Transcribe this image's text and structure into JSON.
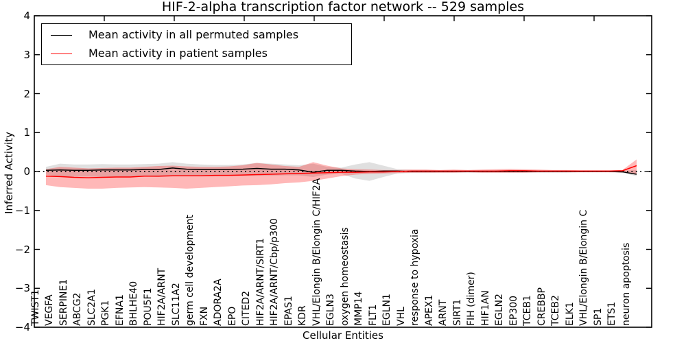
{
  "figure": {
    "title": "HIF-2-alpha transcription factor network -- 529 samples",
    "xlabel": "Cellular Entities",
    "ylabel": "Inferred Activity"
  },
  "legend": {
    "items": [
      {
        "label": "Mean activity in all permuted samples",
        "color": "#000000"
      },
      {
        "label": "Mean activity in patient samples",
        "color": "#ff0000"
      }
    ]
  },
  "chart_data": {
    "type": "line",
    "title": "HIF-2-alpha transcription factor network -- 529 samples",
    "xlabel": "Cellular Entities",
    "ylabel": "Inferred Activity",
    "ylim": [
      -4,
      4
    ],
    "yticks": [
      4,
      3,
      2,
      1,
      0,
      -1,
      -2,
      -3,
      -4
    ],
    "zero_line_style": "dotted",
    "grid": false,
    "legend_position": "upper left",
    "categories": [
      "TWIST1",
      "VEGFA",
      "SERPINE1",
      "ABCG2",
      "SLC2A1",
      "PGK1",
      "EFNA1",
      "BHLHE40",
      "POU5F1",
      "HIF2A/ARNT",
      "SLC11A2",
      "germ cell development",
      "FXN",
      "ADORA2A",
      "EPO",
      "CITED2",
      "HIF2A/ARNT/SIRT1",
      "HIF2A/ARNT/Cbp/p300",
      "EPAS1",
      "KDR",
      "VHL/Elongin B/Elongin C/HIF2A",
      "EGLN3",
      "oxygen homeostasis",
      "MMP14",
      "FLT1",
      "EGLN1",
      "VHL",
      "response to hypoxia",
      "APEX1",
      "ARNT",
      "SIRT1",
      "FIH (dimer)",
      "HIF1AN",
      "EGLN2",
      "EP300",
      "TCEB1",
      "CREBBP",
      "TCEB2",
      "ELK1",
      "VHL/Elongin B/Elongin C",
      "SP1",
      "ETS1",
      "neuron apoptosis"
    ],
    "series": [
      {
        "name": "Mean activity in all permuted samples",
        "color": "#000000",
        "band_color": "#999999",
        "band_opacity": 0.3,
        "values": [
          0.03,
          0.04,
          0.03,
          0.03,
          0.04,
          0.04,
          0.04,
          0.05,
          0.05,
          0.09,
          0.06,
          0.05,
          0.05,
          0.05,
          0.06,
          0.08,
          0.06,
          0.06,
          0.04,
          -0.02,
          0.03,
          0.03,
          0.01,
          0.0,
          0.01,
          0.01,
          0.0,
          0.0,
          0.0,
          0.0,
          0.0,
          0.0,
          0.0,
          0.0,
          0.0,
          0.0,
          0.0,
          0.0,
          0.0,
          0.0,
          0.0,
          -0.01,
          -0.07
        ],
        "band_upper": [
          0.12,
          0.2,
          0.18,
          0.18,
          0.19,
          0.18,
          0.18,
          0.19,
          0.2,
          0.24,
          0.2,
          0.18,
          0.17,
          0.17,
          0.18,
          0.22,
          0.2,
          0.18,
          0.16,
          0.2,
          0.12,
          0.1,
          0.18,
          0.24,
          0.15,
          0.06,
          0.04,
          0.04,
          0.03,
          0.03,
          0.03,
          0.03,
          0.03,
          0.03,
          0.03,
          0.03,
          0.03,
          0.03,
          0.02,
          0.02,
          0.02,
          0.02,
          0.04
        ],
        "band_lower": [
          -0.08,
          -0.14,
          -0.13,
          -0.13,
          -0.14,
          -0.13,
          -0.13,
          -0.13,
          -0.14,
          -0.12,
          -0.12,
          -0.12,
          -0.12,
          -0.11,
          -0.11,
          -0.11,
          -0.11,
          -0.1,
          -0.1,
          -0.14,
          -0.08,
          -0.06,
          -0.18,
          -0.24,
          -0.14,
          -0.05,
          -0.04,
          -0.04,
          -0.03,
          -0.03,
          -0.03,
          -0.03,
          -0.03,
          -0.03,
          -0.03,
          -0.03,
          -0.03,
          -0.03,
          -0.02,
          -0.02,
          -0.02,
          -0.03,
          -0.12
        ]
      },
      {
        "name": "Mean activity in patient samples",
        "color": "#ff0000",
        "band_color": "#ff0000",
        "band_opacity": 0.28,
        "values": [
          -0.12,
          -0.13,
          -0.15,
          -0.16,
          -0.15,
          -0.14,
          -0.14,
          -0.12,
          -0.12,
          -0.11,
          -0.11,
          -0.11,
          -0.1,
          -0.1,
          -0.09,
          -0.08,
          -0.07,
          -0.06,
          -0.05,
          -0.04,
          -0.03,
          -0.02,
          -0.02,
          -0.01,
          -0.01,
          0.0,
          0.01,
          0.01,
          0.01,
          0.01,
          0.01,
          0.01,
          0.01,
          0.02,
          0.02,
          0.01,
          0.01,
          0.01,
          0.01,
          0.01,
          0.01,
          0.02,
          0.15
        ],
        "band_upper": [
          0.06,
          0.12,
          0.1,
          0.08,
          0.09,
          0.1,
          0.1,
          0.12,
          0.14,
          0.15,
          0.13,
          0.12,
          0.12,
          0.13,
          0.16,
          0.22,
          0.18,
          0.14,
          0.12,
          0.24,
          0.15,
          0.08,
          0.06,
          0.05,
          0.04,
          0.04,
          0.05,
          0.05,
          0.04,
          0.05,
          0.04,
          0.05,
          0.06,
          0.07,
          0.06,
          0.05,
          0.04,
          0.04,
          0.03,
          0.03,
          0.03,
          0.04,
          0.31
        ],
        "band_lower": [
          -0.35,
          -0.4,
          -0.42,
          -0.44,
          -0.44,
          -0.42,
          -0.41,
          -0.4,
          -0.41,
          -0.42,
          -0.44,
          -0.42,
          -0.4,
          -0.38,
          -0.36,
          -0.35,
          -0.33,
          -0.3,
          -0.28,
          -0.24,
          -0.18,
          -0.12,
          -0.08,
          -0.06,
          -0.05,
          -0.04,
          -0.03,
          -0.03,
          -0.03,
          -0.03,
          -0.02,
          -0.03,
          -0.03,
          -0.03,
          -0.03,
          -0.02,
          -0.02,
          -0.02,
          -0.02,
          -0.02,
          -0.02,
          -0.02,
          -0.08
        ]
      }
    ]
  }
}
